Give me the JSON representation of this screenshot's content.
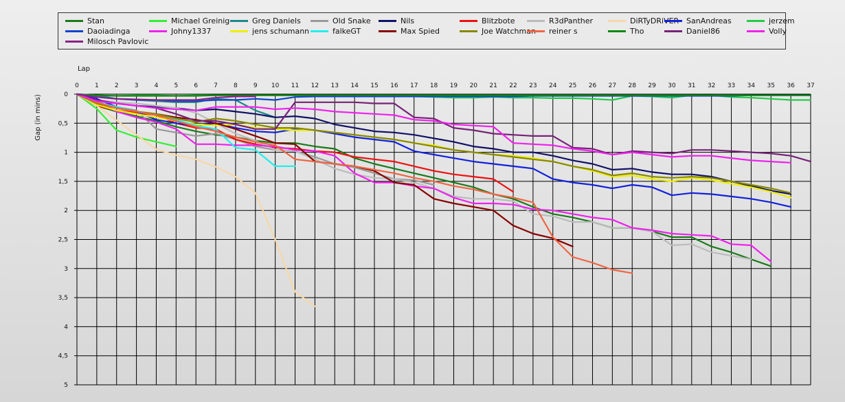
{
  "chart_data": {
    "type": "line",
    "title": "",
    "xlabel": "Lap",
    "ylabel": "Gap (in mins)",
    "xlim": [
      0,
      37
    ],
    "ylim": [
      0,
      5
    ],
    "y_inverted": true,
    "grid": true,
    "legend_position": "top",
    "x_ticks": [
      "0",
      "1",
      "2",
      "3",
      "4",
      "5",
      "6",
      "7",
      "8",
      "9",
      "10",
      "11",
      "12",
      "13",
      "14",
      "15",
      "16",
      "17",
      "18",
      "19",
      "20",
      "21",
      "22",
      "23",
      "24",
      "25",
      "26",
      "27",
      "28",
      "29",
      "30",
      "31",
      "32",
      "33",
      "34",
      "35",
      "36",
      "37"
    ],
    "y_ticks": [
      {
        "value": 0,
        "label": "0"
      },
      {
        "value": 0.5,
        "label": "0,5"
      },
      {
        "value": 1,
        "label": "1"
      },
      {
        "value": 1.5,
        "label": "1,5"
      },
      {
        "value": 2,
        "label": "2"
      },
      {
        "value": 2.5,
        "label": "2,5"
      },
      {
        "value": 3,
        "label": "3"
      },
      {
        "value": 3.5,
        "label": "3,5"
      },
      {
        "value": 4,
        "label": "4"
      },
      {
        "value": 4.5,
        "label": "4,5"
      },
      {
        "value": 5,
        "label": "5"
      }
    ],
    "series": [
      {
        "name": "Stan",
        "color": "#1a7a1a",
        "values": [
          0,
          0.2,
          0.3,
          0.38,
          0.46,
          0.56,
          0.64,
          0.7,
          0.74,
          0.8,
          0.84,
          0.84,
          0.9,
          0.94,
          1.1,
          1.2,
          1.28,
          1.36,
          1.44,
          1.52,
          1.6,
          1.72,
          1.8,
          1.94,
          2.06,
          2.12,
          2.2,
          2.3,
          2.3,
          2.36,
          2.46,
          2.46,
          2.62,
          2.72,
          2.84,
          2.96
        ]
      },
      {
        "name": "Michael Greinig",
        "color": "#33ee33",
        "values": [
          0,
          0.25,
          0.62,
          0.74,
          0.82,
          0.9
        ]
      },
      {
        "name": "Greg Daniels",
        "color": "#1a8888",
        "values": [
          0,
          0.02,
          0.08,
          0.1,
          0.12,
          0.14,
          0.14,
          0.08,
          0.1,
          0.28,
          0.4
        ]
      },
      {
        "name": "Old Snake",
        "color": "#999999",
        "values": [
          0,
          0.15,
          0.22,
          0.28,
          0.6,
          0.66,
          0.72,
          0.68,
          0.78,
          0.9,
          0.96,
          0.98,
          1.08,
          1.2,
          1.26,
          1.36,
          1.46,
          1.48,
          1.56
        ]
      },
      {
        "name": "Nils",
        "color": "#111166",
        "values": [
          0,
          0.12,
          0.16,
          0.2,
          0.22,
          0.24,
          0.28,
          0.26,
          0.3,
          0.34,
          0.4,
          0.38,
          0.42,
          0.52,
          0.58,
          0.64,
          0.66,
          0.7,
          0.76,
          0.82,
          0.9,
          0.94,
          1.0,
          1.0,
          1.06,
          1.14,
          1.2,
          1.3,
          1.28,
          1.34,
          1.38,
          1.38,
          1.42,
          1.5,
          1.58,
          1.66,
          1.72
        ]
      },
      {
        "name": "Blitzbote",
        "color": "#ee1111",
        "values": [
          0,
          0.2,
          0.28,
          0.32,
          0.36,
          0.5,
          0.58,
          0.6,
          0.78,
          0.86,
          0.92,
          0.94,
          0.98,
          1.0,
          1.08,
          1.12,
          1.16,
          1.24,
          1.32,
          1.38,
          1.42,
          1.46,
          1.68
        ]
      },
      {
        "name": "R3dPanther",
        "color": "#bbbbbb",
        "values": [
          0,
          0.1,
          0.14,
          0.16,
          0.2,
          0.24,
          0.32,
          0.5,
          0.68,
          0.8,
          0.96,
          0.98,
          1.12,
          1.28,
          1.38,
          1.44,
          1.46,
          1.52,
          1.62,
          1.76,
          1.8,
          1.8,
          1.84,
          2.06,
          2.1,
          2.2,
          2.2,
          2.3,
          2.3,
          2.36,
          2.6,
          2.58,
          2.72,
          2.78,
          2.84
        ]
      },
      {
        "name": "DiRTyDRiVER",
        "color": "#f7d7a7",
        "values": [
          0,
          0.2,
          0.45,
          0.7,
          0.95,
          1.05,
          1.12,
          1.25,
          1.42,
          1.7,
          2.5,
          3.4,
          3.65
        ]
      },
      {
        "name": "SanAndreas",
        "color": "#1122dd",
        "values": [
          0,
          0.08,
          0.22,
          0.3,
          0.44,
          0.5,
          0.54,
          0.5,
          0.58,
          0.64,
          0.66,
          0.6,
          0.62,
          0.68,
          0.74,
          0.78,
          0.82,
          0.98,
          1.04,
          1.1,
          1.16,
          1.2,
          1.24,
          1.28,
          1.46,
          1.52,
          1.56,
          1.62,
          1.56,
          1.6,
          1.74,
          1.7,
          1.72,
          1.76,
          1.8,
          1.86,
          1.94
        ]
      },
      {
        "name": "jerzem",
        "color": "#22cc44",
        "values": [
          0,
          0.02,
          0.03,
          0.02,
          0.02,
          0.03,
          0.02,
          0.02,
          0.02,
          0.02,
          0.02,
          0.02,
          0.03,
          0.03,
          0.03,
          0.03,
          0.04,
          0.04,
          0.05,
          0.06,
          0.06,
          0.05,
          0.06,
          0.06,
          0.07,
          0.07,
          0.08,
          0.1,
          0.03,
          0.04,
          0.06,
          0.02,
          0.02,
          0.05,
          0.06,
          0.08,
          0.1,
          0.1
        ]
      },
      {
        "name": "Daoiadinga",
        "color": "#1144cc",
        "values": [
          0,
          0.05,
          0.08,
          0.1,
          0.1,
          0.12,
          0.12,
          0.1,
          0.1,
          0.08,
          0.1,
          0.05,
          0.04,
          0.04,
          0.04,
          0.04,
          0.04,
          0.04,
          0.04,
          0.04,
          0.04,
          0.04,
          0.04,
          0.03,
          0.03,
          0.03,
          0.03,
          0.03,
          0.03,
          0.03,
          0.03,
          0.03,
          0.03,
          0.03,
          0.02,
          0.02,
          0.02,
          0.02
        ]
      },
      {
        "name": "Johny1337",
        "color": "#ee22ee",
        "values": [
          0,
          0.12,
          0.3,
          0.4,
          0.48,
          0.6,
          0.86,
          0.86,
          0.88,
          0.88,
          0.9,
          0.96,
          0.98,
          1.06,
          1.36,
          1.52,
          1.52,
          1.58,
          1.62,
          1.78,
          1.88,
          1.88,
          1.9,
          1.98,
          2.0,
          2.06,
          2.12,
          2.16,
          2.3,
          2.34,
          2.4,
          2.42,
          2.44,
          2.58,
          2.6,
          2.88
        ]
      },
      {
        "name": "jens schumann",
        "color": "#eeee00",
        "values": [
          0,
          0.18,
          0.28,
          0.34,
          0.4,
          0.46,
          0.52,
          0.54,
          0.52,
          0.58,
          0.6,
          0.62,
          0.62,
          0.66,
          0.7,
          0.74,
          0.78,
          0.84,
          0.88,
          0.96,
          1.0,
          1.04,
          1.06,
          1.1,
          1.16,
          1.24,
          1.32,
          1.42,
          1.4,
          1.46,
          1.5,
          1.44,
          1.48,
          1.54,
          1.6,
          1.68,
          1.78
        ]
      },
      {
        "name": "falkeGT",
        "color": "#22eeee",
        "values": [
          0,
          0.14,
          0.22,
          0.3,
          0.36,
          0.44,
          0.54,
          0.6,
          0.92,
          0.96,
          1.24,
          1.24
        ]
      },
      {
        "name": "Max Spied",
        "color": "#880000",
        "values": [
          0,
          0.16,
          0.24,
          0.3,
          0.34,
          0.4,
          0.44,
          0.5,
          0.6,
          0.72,
          0.84,
          0.86,
          1.16,
          1.2,
          1.24,
          1.32,
          1.52,
          1.56,
          1.8,
          1.88,
          1.94,
          2.0,
          2.26,
          2.4,
          2.48,
          2.62
        ]
      },
      {
        "name": "Joe Watchman",
        "color": "#888800",
        "values": [
          0,
          0.16,
          0.24,
          0.3,
          0.34,
          0.42,
          0.48,
          0.42,
          0.46,
          0.52,
          0.58,
          0.58,
          0.62,
          0.66,
          0.7,
          0.74,
          0.78,
          0.84,
          0.9,
          0.96,
          1.0,
          1.04,
          1.08,
          1.12,
          1.16,
          1.24,
          1.3,
          1.4,
          1.36,
          1.42,
          1.44,
          1.42,
          1.44,
          1.5,
          1.56,
          1.62,
          1.7
        ]
      },
      {
        "name": "reiner s",
        "color": "#ee6644",
        "values": [
          0,
          0.14,
          0.24,
          0.3,
          0.36,
          0.46,
          0.56,
          0.64,
          0.74,
          0.82,
          0.88,
          1.12,
          1.16,
          1.2,
          1.24,
          1.3,
          1.36,
          1.44,
          1.5,
          1.58,
          1.64,
          1.72,
          1.78,
          1.86,
          2.46,
          2.8,
          2.9,
          3.02,
          3.08
        ]
      },
      {
        "name": "Tho",
        "color": "#118811",
        "values": [
          0,
          0.02,
          0.03,
          0.03,
          0.03,
          0.03,
          0.03,
          0.02,
          0.02,
          0.02,
          0.02,
          0.02,
          0.02,
          0.02,
          0.02,
          0.02,
          0.02,
          0.02,
          0.02,
          0.02,
          0.02,
          0.02,
          0.02,
          0.02,
          0.02,
          0.02,
          0.02,
          0.02,
          0.02,
          0.02,
          0.02,
          0.02,
          0.02,
          0.02,
          0.02,
          0.02,
          0.02,
          0.02
        ]
      },
      {
        "name": "Daniel86",
        "color": "#772277",
        "values": [
          0,
          0.1,
          0.16,
          0.2,
          0.24,
          0.34,
          0.46,
          0.46,
          0.52,
          0.6,
          0.6,
          0.14,
          0.14,
          0.14,
          0.14,
          0.16,
          0.16,
          0.4,
          0.42,
          0.58,
          0.62,
          0.68,
          0.7,
          0.72,
          0.72,
          0.92,
          0.94,
          1.04,
          0.98,
          1.0,
          1.02,
          0.96,
          0.96,
          0.98,
          1.0,
          1.02,
          1.06,
          1.16
        ]
      },
      {
        "name": "Volly",
        "color": "#ee22ee",
        "values": [
          0,
          0.12,
          0.16,
          0.2,
          0.24,
          0.26,
          0.28,
          0.22,
          0.22,
          0.22,
          0.26,
          0.24,
          0.26,
          0.3,
          0.32,
          0.34,
          0.36,
          0.44,
          0.46,
          0.52,
          0.54,
          0.56,
          0.84,
          0.86,
          0.88,
          0.94,
          0.98,
          1.04,
          1.0,
          1.04,
          1.08,
          1.06,
          1.06,
          1.1,
          1.14,
          1.16,
          1.18
        ]
      },
      {
        "name": "Milosch Pavlovic",
        "color": "#882288",
        "values": [
          0,
          0.05,
          0.08,
          0.09,
          0.1,
          0.1,
          0.1,
          0.06,
          0.04,
          0.04
        ]
      }
    ]
  }
}
